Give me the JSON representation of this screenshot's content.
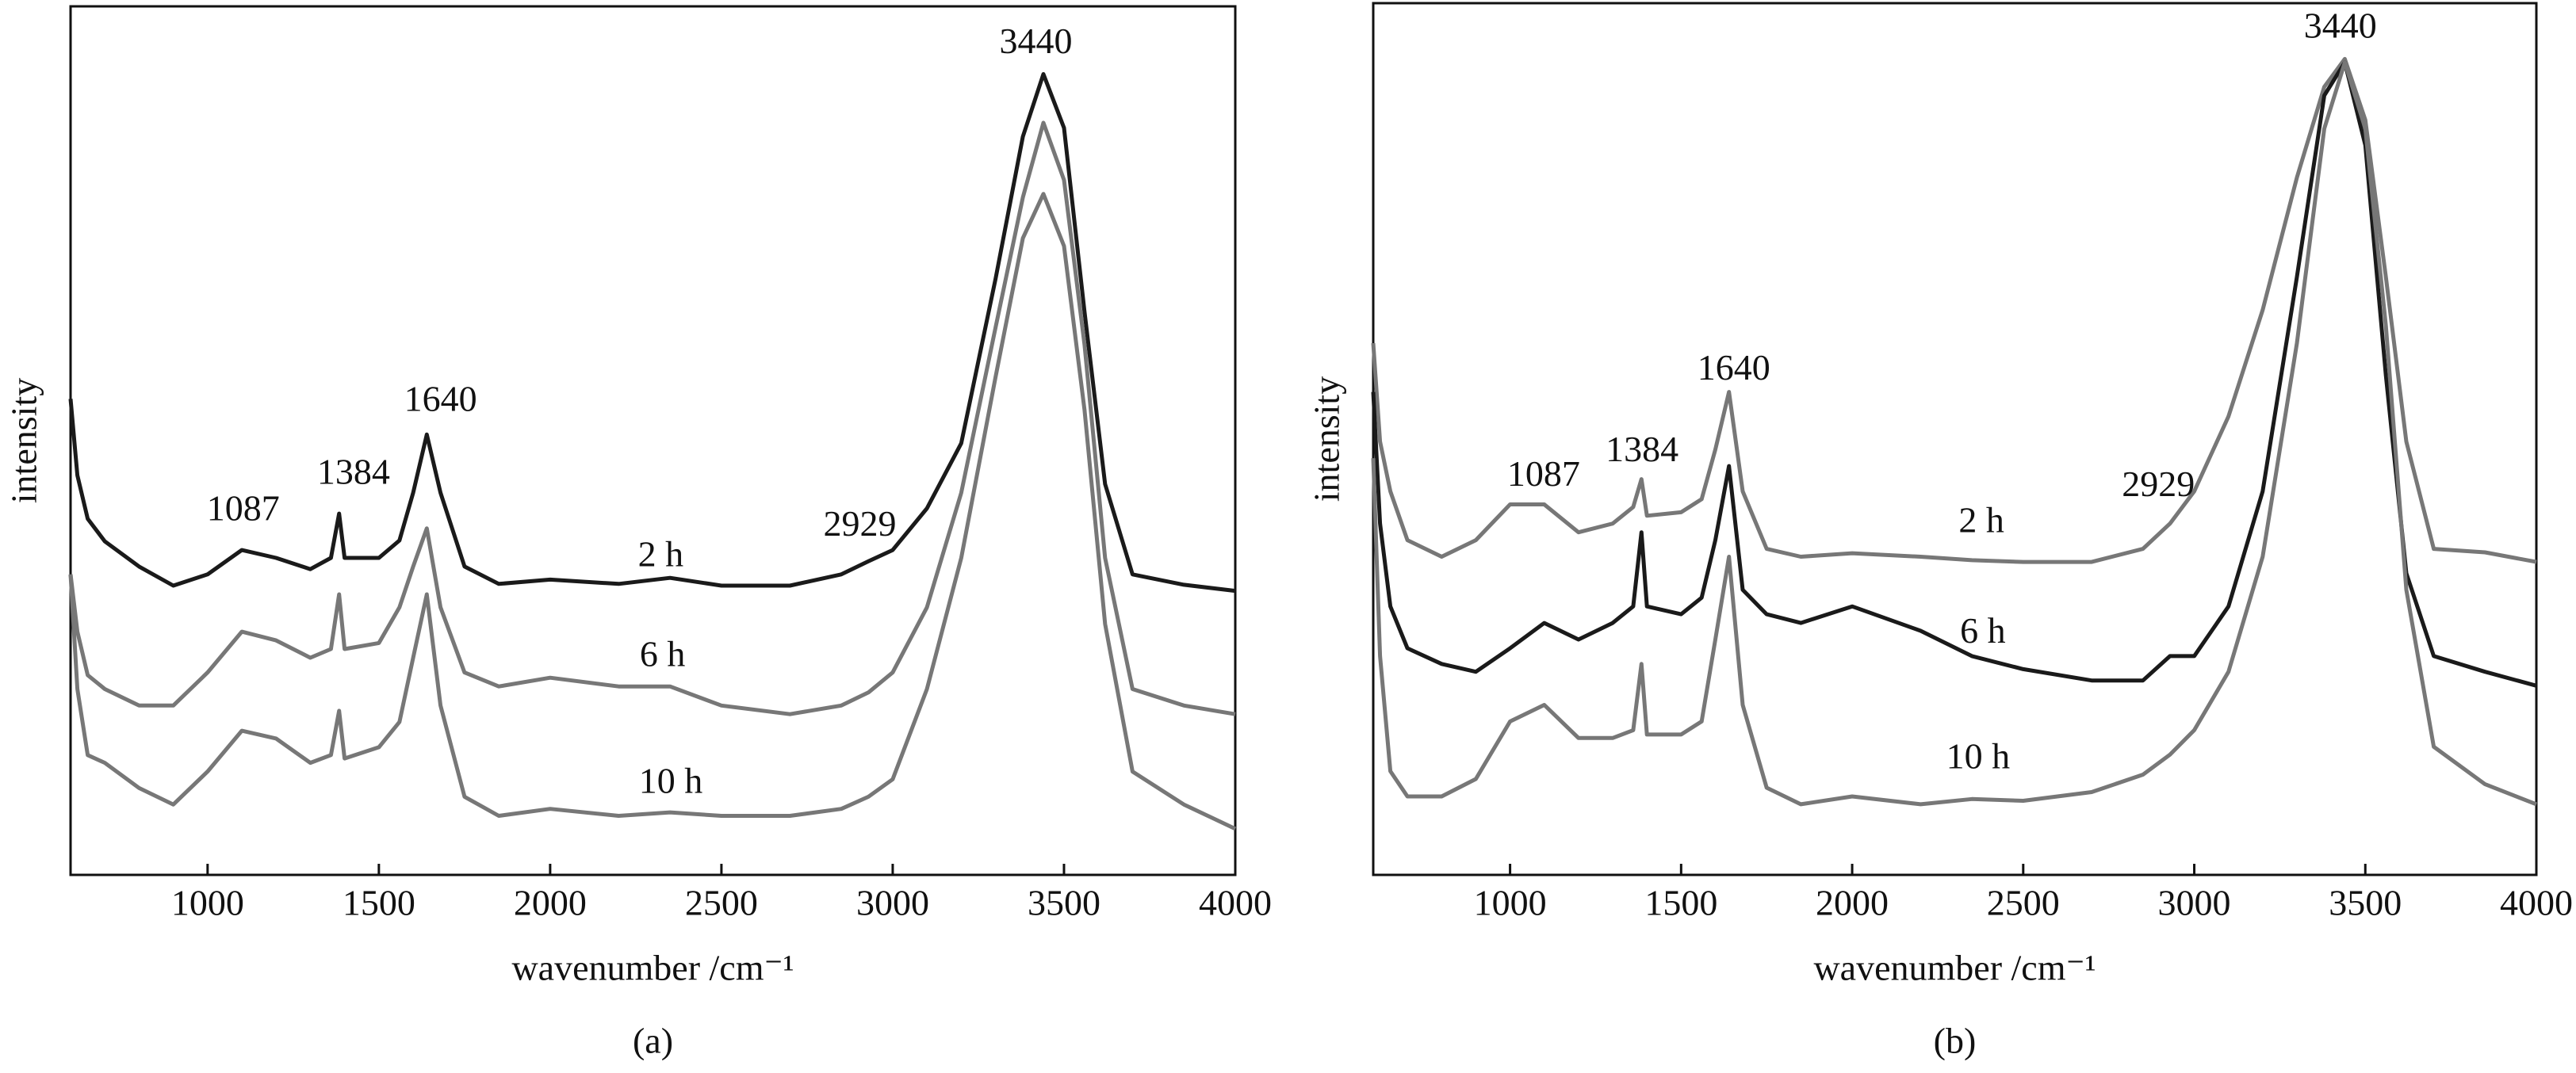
{
  "chart_data": [
    {
      "type": "line",
      "panel_label": "(a)",
      "xlabel": "wavenumber /cm⁻¹",
      "ylabel": "intensity",
      "xlim": [
        600,
        4000
      ],
      "xticks": [
        1000,
        1500,
        2000,
        2500,
        3000,
        3500,
        4000
      ],
      "ylim": [
        0,
        100
      ],
      "x": [
        600,
        620,
        650,
        700,
        800,
        900,
        1000,
        1100,
        1200,
        1300,
        1360,
        1384,
        1400,
        1500,
        1560,
        1600,
        1640,
        1680,
        1750,
        1850,
        2000,
        2200,
        2350,
        2500,
        2700,
        2850,
        2929,
        3000,
        3100,
        3200,
        3300,
        3380,
        3440,
        3500,
        3560,
        3620,
        3700,
        3850,
        4000
      ],
      "series": [
        {
          "name": "2 h",
          "color": "#1a1a1a",
          "label_x": 2323,
          "label_y": 36.5,
          "values": [
            54.8,
            46,
            41,
            38.4,
            35.5,
            33.3,
            34.6,
            37.4,
            36.5,
            35.2,
            36.5,
            41.6,
            36.5,
            36.5,
            38.5,
            44,
            50.7,
            44,
            35.5,
            33.5,
            34,
            33.5,
            34.2,
            33.3,
            33.3,
            34.6,
            36.1,
            37.4,
            42.2,
            49.7,
            68.6,
            85,
            92.2,
            86,
            64.8,
            45,
            34.6,
            33.4,
            32.7
          ]
        },
        {
          "name": "6 h",
          "color": "#777777",
          "label_x": 2328,
          "label_y": 25,
          "values": [
            34.6,
            28,
            23,
            21.4,
            19.5,
            19.5,
            23.3,
            28,
            27,
            25,
            26,
            32.3,
            26,
            26.7,
            30.8,
            35.5,
            39.9,
            30.8,
            23.3,
            21.7,
            22.7,
            21.7,
            21.7,
            19.5,
            18.5,
            19.5,
            21,
            23.3,
            30.8,
            44,
            63,
            78,
            86.6,
            80,
            61,
            36.5,
            21.4,
            19.5,
            18.5
          ]
        },
        {
          "name": "10 h",
          "color": "#777777",
          "label_x": 2352,
          "label_y": 10.4,
          "values": [
            34.6,
            21.4,
            13.8,
            12.9,
            10,
            8.1,
            11.9,
            16.6,
            15.7,
            12.9,
            13.8,
            18.9,
            13.4,
            14.7,
            17.6,
            25,
            32.3,
            19.5,
            9,
            6.8,
            7.6,
            6.8,
            7.2,
            6.8,
            6.8,
            7.6,
            9,
            11,
            21.4,
            36.5,
            57.3,
            73.3,
            78.4,
            72.4,
            53.5,
            28.9,
            11.9,
            8.1,
            5.3
          ]
        }
      ],
      "annotations": [
        {
          "text": "3440",
          "x": 3418,
          "y": 95.6
        },
        {
          "text": "1640",
          "x": 1680,
          "y": 54.4
        },
        {
          "text": "1384",
          "x": 1426,
          "y": 46
        },
        {
          "text": "1087",
          "x": 1104,
          "y": 41.8
        },
        {
          "text": "2929",
          "x": 2904,
          "y": 40
        }
      ]
    },
    {
      "type": "line",
      "panel_label": "(b)",
      "xlabel": "wavenumber /cm⁻¹",
      "ylabel": "intensity",
      "xlim": [
        600,
        4000
      ],
      "xticks": [
        1000,
        1500,
        2000,
        2500,
        3000,
        3500,
        4000
      ],
      "ylim": [
        0,
        100
      ],
      "x": [
        600,
        620,
        650,
        700,
        800,
        900,
        1000,
        1100,
        1200,
        1300,
        1360,
        1384,
        1400,
        1500,
        1560,
        1600,
        1640,
        1680,
        1750,
        1850,
        2000,
        2200,
        2350,
        2500,
        2700,
        2850,
        2929,
        3000,
        3100,
        3200,
        3300,
        3380,
        3440,
        3500,
        3560,
        3620,
        3700,
        3850,
        4000
      ],
      "series": [
        {
          "name": "2 h",
          "color": "#777777",
          "label_x": 2378,
          "label_y": 40.3,
          "values": [
            61,
            49.7,
            44,
            38.4,
            36.5,
            38.4,
            42.5,
            42.5,
            39.3,
            40.3,
            42.2,
            45.4,
            41.2,
            41.6,
            43.1,
            48.8,
            55.4,
            44,
            37.4,
            36.5,
            36.9,
            36.5,
            36.1,
            35.9,
            35.9,
            37.4,
            40.3,
            44,
            52.6,
            64.8,
            80,
            90.4,
            93.6,
            86.6,
            68.6,
            49.7,
            37.4,
            37,
            35.9
          ]
        },
        {
          "name": "6 h",
          "color": "#1a1a1a",
          "label_x": 2382,
          "label_y": 27.6,
          "values": [
            55.4,
            40.3,
            30.8,
            26,
            24.2,
            23.3,
            26,
            28.9,
            27,
            28.9,
            30.8,
            39.3,
            30.8,
            29.9,
            31.8,
            38.4,
            46.9,
            32.7,
            29.9,
            28.9,
            30.8,
            28,
            25.1,
            23.6,
            22.3,
            22.3,
            25.1,
            25.1,
            30.8,
            44,
            68.6,
            89.4,
            93.2,
            83.7,
            57.3,
            34.6,
            25.1,
            23.3,
            21.7
          ]
        },
        {
          "name": "10 h",
          "color": "#777777",
          "label_x": 2368,
          "label_y": 13.2,
          "values": [
            47.8,
            25.1,
            11.9,
            9,
            9,
            11,
            17.6,
            19.5,
            15.7,
            15.7,
            16.6,
            24.2,
            16.1,
            16.1,
            17.6,
            27,
            36.5,
            19.5,
            10,
            8.1,
            9,
            8.1,
            8.7,
            8.5,
            9.5,
            11.5,
            13.8,
            16.6,
            23.3,
            36.5,
            61,
            85.6,
            93.2,
            85.6,
            63,
            32.7,
            14.7,
            10.4,
            8.1
          ]
        }
      ],
      "annotations": [
        {
          "text": "3440",
          "x": 3427,
          "y": 97
        },
        {
          "text": "1640",
          "x": 1654,
          "y": 57.8
        },
        {
          "text": "1384",
          "x": 1386,
          "y": 48.4
        },
        {
          "text": "1087",
          "x": 1098,
          "y": 45.6
        },
        {
          "text": "2929",
          "x": 2895,
          "y": 44.4
        }
      ]
    }
  ]
}
